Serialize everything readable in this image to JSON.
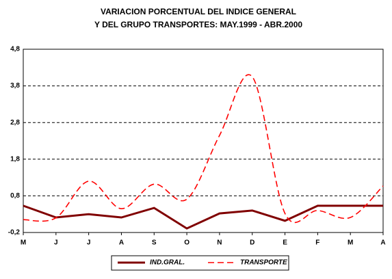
{
  "chart_data": {
    "type": "line",
    "title": [
      "VARIACION PORCENTUAL DEL INDICE GENERAL",
      "Y DEL GRUPO TRANSPORTES: MAY.1999 - ABR.2000"
    ],
    "categories": [
      "M",
      "J",
      "J",
      "A",
      "S",
      "O",
      "N",
      "D",
      "E",
      "F",
      "M",
      "A"
    ],
    "series": [
      {
        "name": "IND.GRAL.",
        "color": "#800000",
        "values": [
          0.53,
          0.21,
          0.3,
          0.21,
          0.47,
          -0.09,
          0.32,
          0.4,
          0.12,
          0.53,
          0.53,
          0.53
        ]
      },
      {
        "name": "TRANSPORTE",
        "color": "#ff0000",
        "values": [
          0.15,
          0.2,
          1.2,
          0.45,
          1.12,
          0.71,
          2.45,
          4.05,
          0.32,
          0.4,
          0.21,
          1.07
        ]
      }
    ],
    "ylim": [
      -0.2,
      4.8
    ],
    "yticks": [
      {
        "value": -0.2,
        "label": "-0,2"
      },
      {
        "value": 0.8,
        "label": "0,8"
      },
      {
        "value": 1.8,
        "label": "1,8"
      },
      {
        "value": 2.8,
        "label": "2,8"
      },
      {
        "value": 3.8,
        "label": "3,8"
      },
      {
        "value": 4.8,
        "label": "4,8"
      }
    ],
    "grid": true
  }
}
